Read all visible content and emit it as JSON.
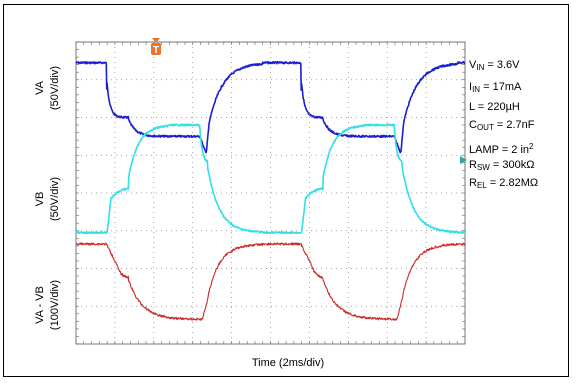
{
  "chart_data": {
    "type": "line",
    "xlabel": "Time (2ms/div)",
    "x_divisions": 10,
    "y_divisions": 8,
    "channels": [
      {
        "name": "VA",
        "scale": "(50V/div)",
        "color": "#1a1fd0"
      },
      {
        "name": "VB",
        "scale": "(50V/div)",
        "color": "#2ee0e8"
      },
      {
        "name": "VA - VB",
        "scale": "(100V/div)",
        "color": "#cc2a2a"
      }
    ],
    "trigger_marker": "T",
    "trigger_color": "#e8762a",
    "grid": "dotted"
  },
  "annotations": [
    {
      "main": "V",
      "sub": "IN",
      "rest": " = 3.6V"
    },
    {
      "main": "I",
      "sub": "IN",
      "rest": " = 17mA"
    },
    {
      "main": "L = 220µH",
      "sub": "",
      "rest": ""
    },
    {
      "main": "C",
      "sub": "OUT",
      "rest": " = 2.7nF"
    },
    {
      "main": "LAMP = 2 in",
      "sup": "2",
      "rest": ""
    },
    {
      "main": "R",
      "sub": "SW",
      "rest": " = 300kΩ"
    },
    {
      "main": "R",
      "sub": "EL",
      "rest": " = 2.82MΩ"
    }
  ]
}
